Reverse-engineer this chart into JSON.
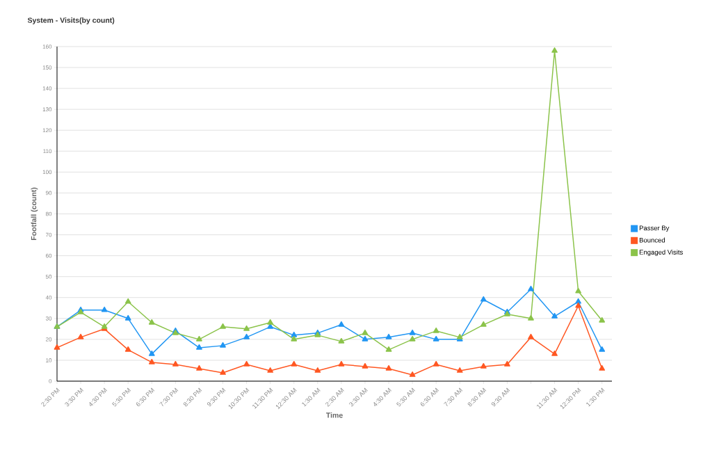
{
  "chart_data": {
    "type": "line",
    "title": "System - Visits(by count)",
    "xlabel": "Time",
    "ylabel": "Footfall (count)",
    "categories": [
      "2:30 PM",
      "3:30 PM",
      "4:30 PM",
      "5:30 PM",
      "6:30 PM",
      "7:30 PM",
      "8:30 PM",
      "9:30 PM",
      "10:30 PM",
      "11:30 PM",
      "12:30 AM",
      "1:30 AM",
      "2:30 AM",
      "3:30 AM",
      "4:30 AM",
      "5:30 AM",
      "6:30 AM",
      "7:30 AM",
      "8:30 AM",
      "9:30 AM",
      null,
      "11:30 AM",
      "12:30 PM",
      "1:30 PM"
    ],
    "series": [
      {
        "name": "Passer By",
        "color": "#2196f3",
        "values": [
          26,
          34,
          34,
          30,
          13,
          24,
          16,
          17,
          21,
          26,
          22,
          23,
          27,
          20,
          21,
          23,
          20,
          20,
          39,
          33,
          44,
          31,
          38,
          15
        ]
      },
      {
        "name": "Bounced",
        "color": "#ff5722",
        "values": [
          16,
          21,
          25,
          15,
          9,
          8,
          6,
          4,
          8,
          5,
          8,
          5,
          8,
          7,
          6,
          3,
          8,
          5,
          7,
          8,
          21,
          13,
          36,
          6
        ]
      },
      {
        "name": "Engaged Visits",
        "color": "#8bc34a",
        "values": [
          26,
          33,
          26,
          38,
          28,
          23,
          20,
          26,
          25,
          28,
          20,
          22,
          19,
          23,
          15,
          20,
          24,
          21,
          27,
          32,
          30,
          158,
          43,
          29
        ]
      }
    ],
    "ylim": [
      0,
      160
    ],
    "yticks": [
      0,
      10,
      20,
      30,
      40,
      50,
      60,
      70,
      80,
      90,
      100,
      110,
      120,
      130,
      140,
      150,
      160
    ],
    "grid": "y",
    "legend": "right",
    "marker": "triangle",
    "line_style": "solid"
  }
}
